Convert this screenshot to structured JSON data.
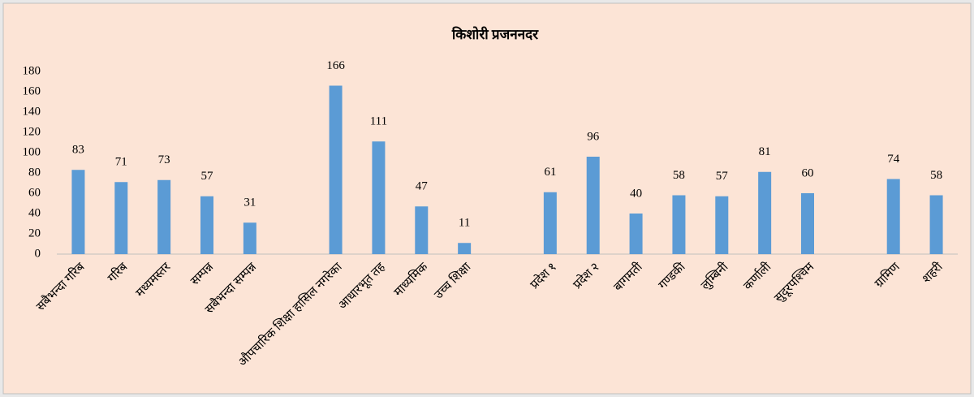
{
  "chart_data": {
    "type": "bar",
    "title": "किशोरी प्रजननदर",
    "categories": [
      "सबैभन्दा गरिब",
      "गरिब",
      "मध्यमस्तर",
      "सम्पन्न",
      "सबैभन्दा सम्पन्न",
      null,
      "औपचारिक शिक्षा हासिल नगरेका",
      "आधारभूत तह",
      "माध्यमिक",
      "उच्च शिक्षा",
      null,
      "प्रदेश १",
      "प्रदेश २",
      "बागमती",
      "गण्डकी",
      "लुम्बिनी",
      "कर्णाली",
      "सुदूरपश्चिम",
      null,
      "ग्रामिण",
      "शहरी"
    ],
    "values": [
      83,
      71,
      73,
      57,
      31,
      null,
      166,
      111,
      47,
      11,
      null,
      61,
      96,
      40,
      58,
      57,
      81,
      60,
      null,
      74,
      58
    ],
    "color": "#5b9bd5",
    "ylim": [
      0,
      180
    ],
    "yticks": [
      0,
      20,
      40,
      60,
      80,
      100,
      120,
      140,
      160,
      180
    ],
    "grid": false
  }
}
